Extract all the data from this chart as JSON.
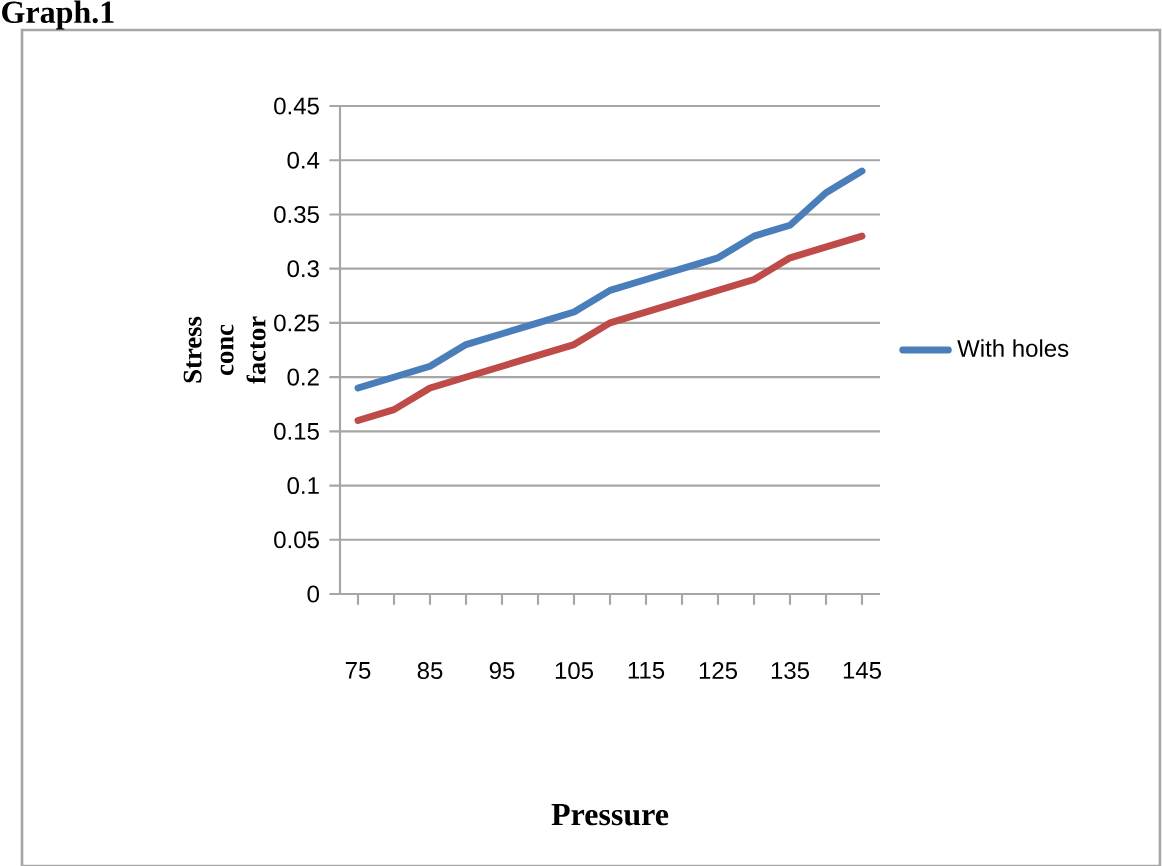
{
  "chart_data": {
    "type": "line",
    "title": "Graph.1",
    "xlabel": "Pressure",
    "ylabel": "Stress conc factor",
    "categories": [
      "75",
      null,
      "85",
      null,
      "95",
      null,
      "105",
      null,
      "115",
      null,
      "125",
      null,
      "135",
      null,
      "145"
    ],
    "series": [
      {
        "name": "With holes",
        "color": "#4a7ebb",
        "values": [
          0.19,
          0.2,
          0.21,
          0.23,
          0.24,
          0.25,
          0.26,
          0.28,
          0.29,
          0.3,
          0.31,
          0.33,
          0.34,
          0.37,
          0.39
        ]
      },
      {
        "color": "#be4b48",
        "values": [
          0.16,
          0.17,
          0.19,
          0.2,
          0.21,
          0.22,
          0.23,
          0.25,
          0.26,
          0.27,
          0.28,
          0.29,
          0.31,
          0.32,
          0.33
        ]
      }
    ],
    "ylim": [
      0,
      0.45
    ],
    "yticks": [
      0,
      0.05,
      0.1,
      0.15,
      0.2,
      0.25,
      0.3,
      0.35,
      0.4,
      0.45
    ],
    "grid": "y",
    "legend": "right",
    "marker": "none",
    "line_style": "solid"
  }
}
